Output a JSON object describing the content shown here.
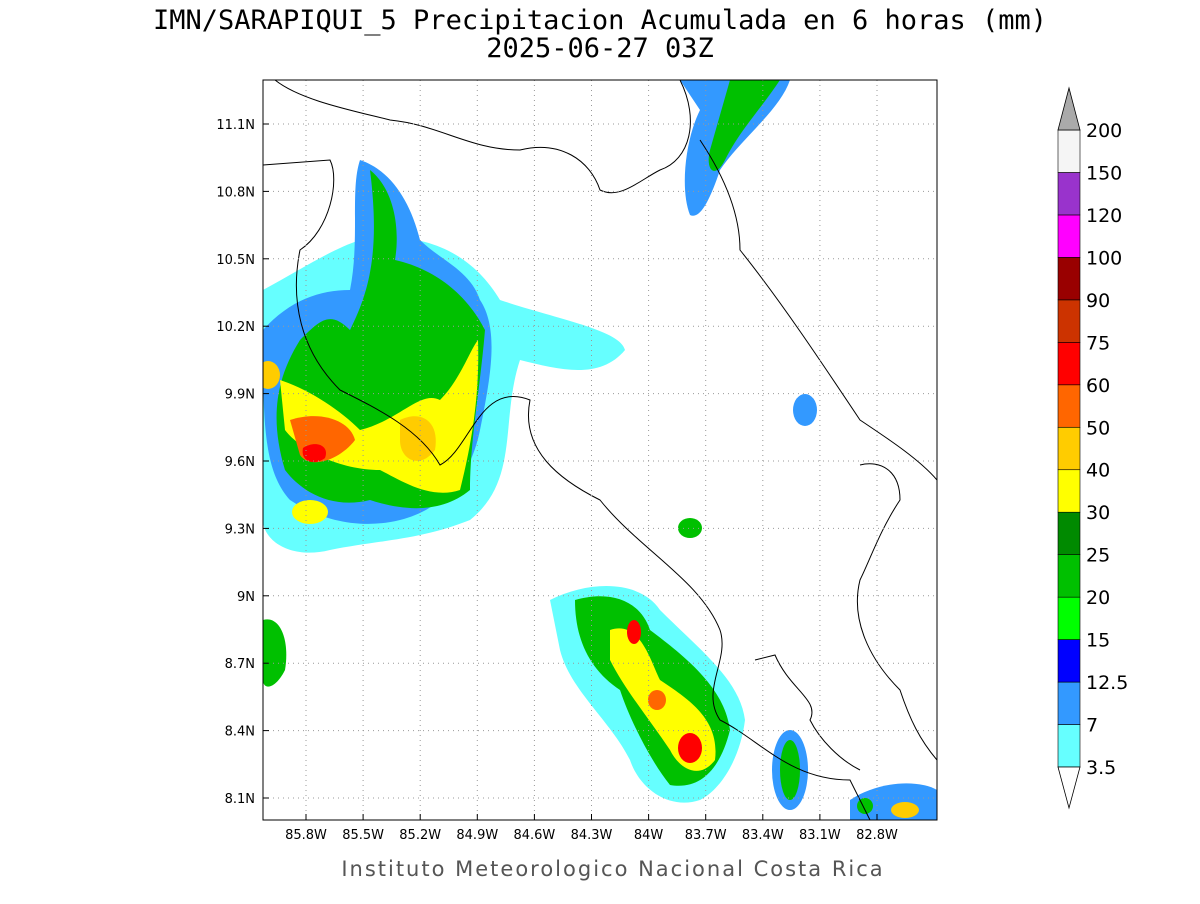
{
  "title": "IMN/SARAPIQUI_5 Precipitacion Acumulada en 6 horas (mm)",
  "subtitle": "2025-06-27 03Z",
  "lat_labels": [
    "11.1N",
    "10.8N",
    "10.5N",
    "10.2N",
    "9.9N",
    "9.6N",
    "9.3N",
    "9N",
    "8.7N",
    "8.4N",
    "8.1N"
  ],
  "lon_labels": [
    "85.8W",
    "85.5W",
    "85.2W",
    "84.9W",
    "84.6W",
    "84.3W",
    "84W",
    "83.7W",
    "83.4W",
    "83.1W",
    "82.8W"
  ],
  "colorbar": {
    "levels": [
      3.5,
      7,
      12.5,
      15,
      20,
      25,
      30,
      40,
      50,
      60,
      75,
      90,
      100,
      120,
      150,
      200
    ],
    "colors": [
      "#66ffff",
      "#3399ff",
      "#0000ff",
      "#00ff00",
      "#00c000",
      "#008a00",
      "#ffff00",
      "#ffcc00",
      "#ff6600",
      "#ff0000",
      "#cc3300",
      "#990000",
      "#ff00ff",
      "#9933cc",
      "#f5f5f5"
    ]
  },
  "footer": "Instituto Meteorologico Nacional Costa Rica"
}
